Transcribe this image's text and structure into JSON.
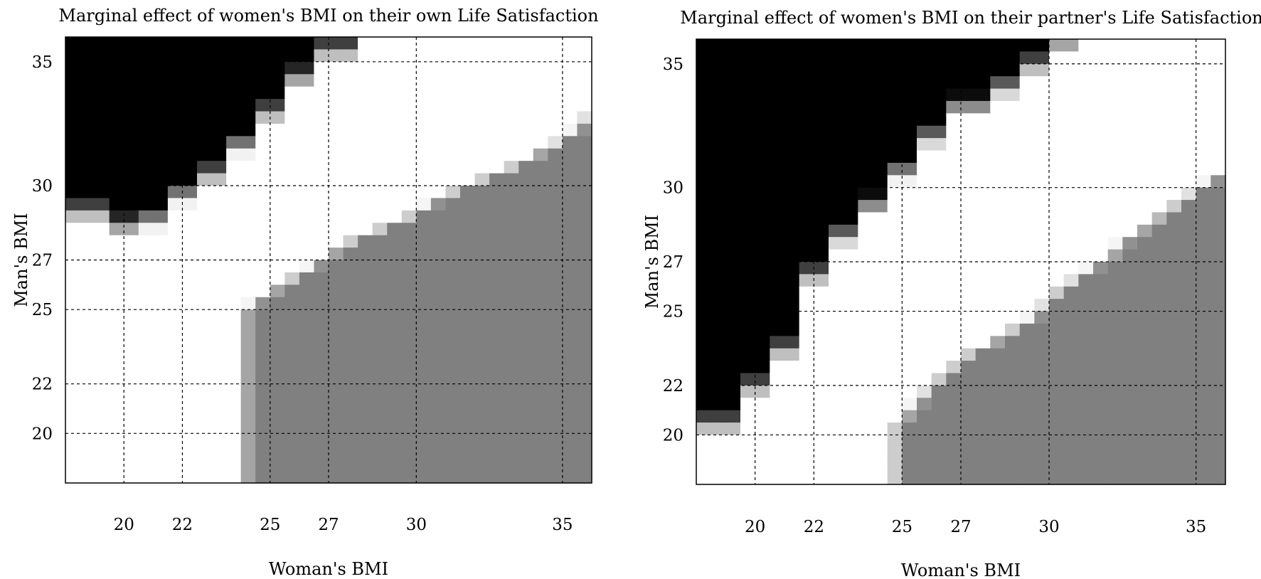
{
  "chart_data": [
    {
      "type": "heatmap",
      "title": "Marginal effect of women's BMI on their own Life Satisfaction",
      "xlabel": "Woman's BMI",
      "ylabel": "Man's BMI",
      "xlim": [
        18,
        36
      ],
      "ylim": [
        18,
        36
      ],
      "xticks": [
        20,
        22,
        25,
        27,
        30,
        35
      ],
      "yticks": [
        20,
        22,
        25,
        27,
        30,
        35
      ],
      "grid": true,
      "colormap": {
        "low": "#000000",
        "mid": "#ffffff",
        "high": "#808080"
      },
      "boundaries": {
        "lower_y": [
          28.5,
          27.9,
          28.2,
          29.2,
          30.0,
          31.2,
          32.5,
          33.9,
          35.0,
          35.9,
          36.5,
          37.5,
          38.5,
          39.0,
          39.0,
          39.0,
          39.0
        ],
        "upper_x": [
          23.8,
          23.8,
          23.8,
          23.8,
          23.8,
          23.8,
          23.8,
          23.8,
          23.8,
          23.8,
          23.8,
          23.8,
          23.8,
          23.8,
          24.2,
          24.8,
          25.5,
          26.2,
          26.8,
          27.5,
          28.5,
          29.5,
          30.2,
          31.0,
          32.0,
          33.0,
          33.8,
          34.6,
          35.2,
          35.6,
          36.0,
          36.4,
          36.8,
          37.2,
          37.5,
          37.8
        ]
      }
    },
    {
      "type": "heatmap",
      "title": "Marginal effect of women's BMI on their partner's Life Satisfaction",
      "xlabel": "Woman's BMI",
      "ylabel": "Man's BMI",
      "xlim": [
        18,
        36
      ],
      "ylim": [
        18,
        36
      ],
      "xticks": [
        20,
        22,
        25,
        27,
        30,
        35
      ],
      "yticks": [
        20,
        22,
        25,
        27,
        30,
        35
      ],
      "grid": true,
      "colormap": {
        "low": "#000000",
        "mid": "#ffffff",
        "high": "#808080"
      },
      "boundaries": {
        "lower_y": [
          20.0,
          21.5,
          23.0,
          26.0,
          27.6,
          28.8,
          30.2,
          31.6,
          32.8,
          33.6,
          34.5,
          35.4,
          36.0,
          36.8,
          37.6,
          38.5,
          39.0
        ],
        "upper_x": [
          24.5,
          24.5,
          24.5,
          24.5,
          24.5,
          24.8,
          25.2,
          25.6,
          26.0,
          26.5,
          27.0,
          27.8,
          28.5,
          29.2,
          29.6,
          30.0,
          30.6,
          31.2,
          31.8,
          32.2,
          32.8,
          33.4,
          34.0,
          34.6,
          35.2,
          35.8,
          36.2,
          36.6,
          37.0,
          37.4,
          37.8,
          38.2,
          38.6,
          39.0,
          39.0,
          39.0
        ]
      }
    }
  ]
}
